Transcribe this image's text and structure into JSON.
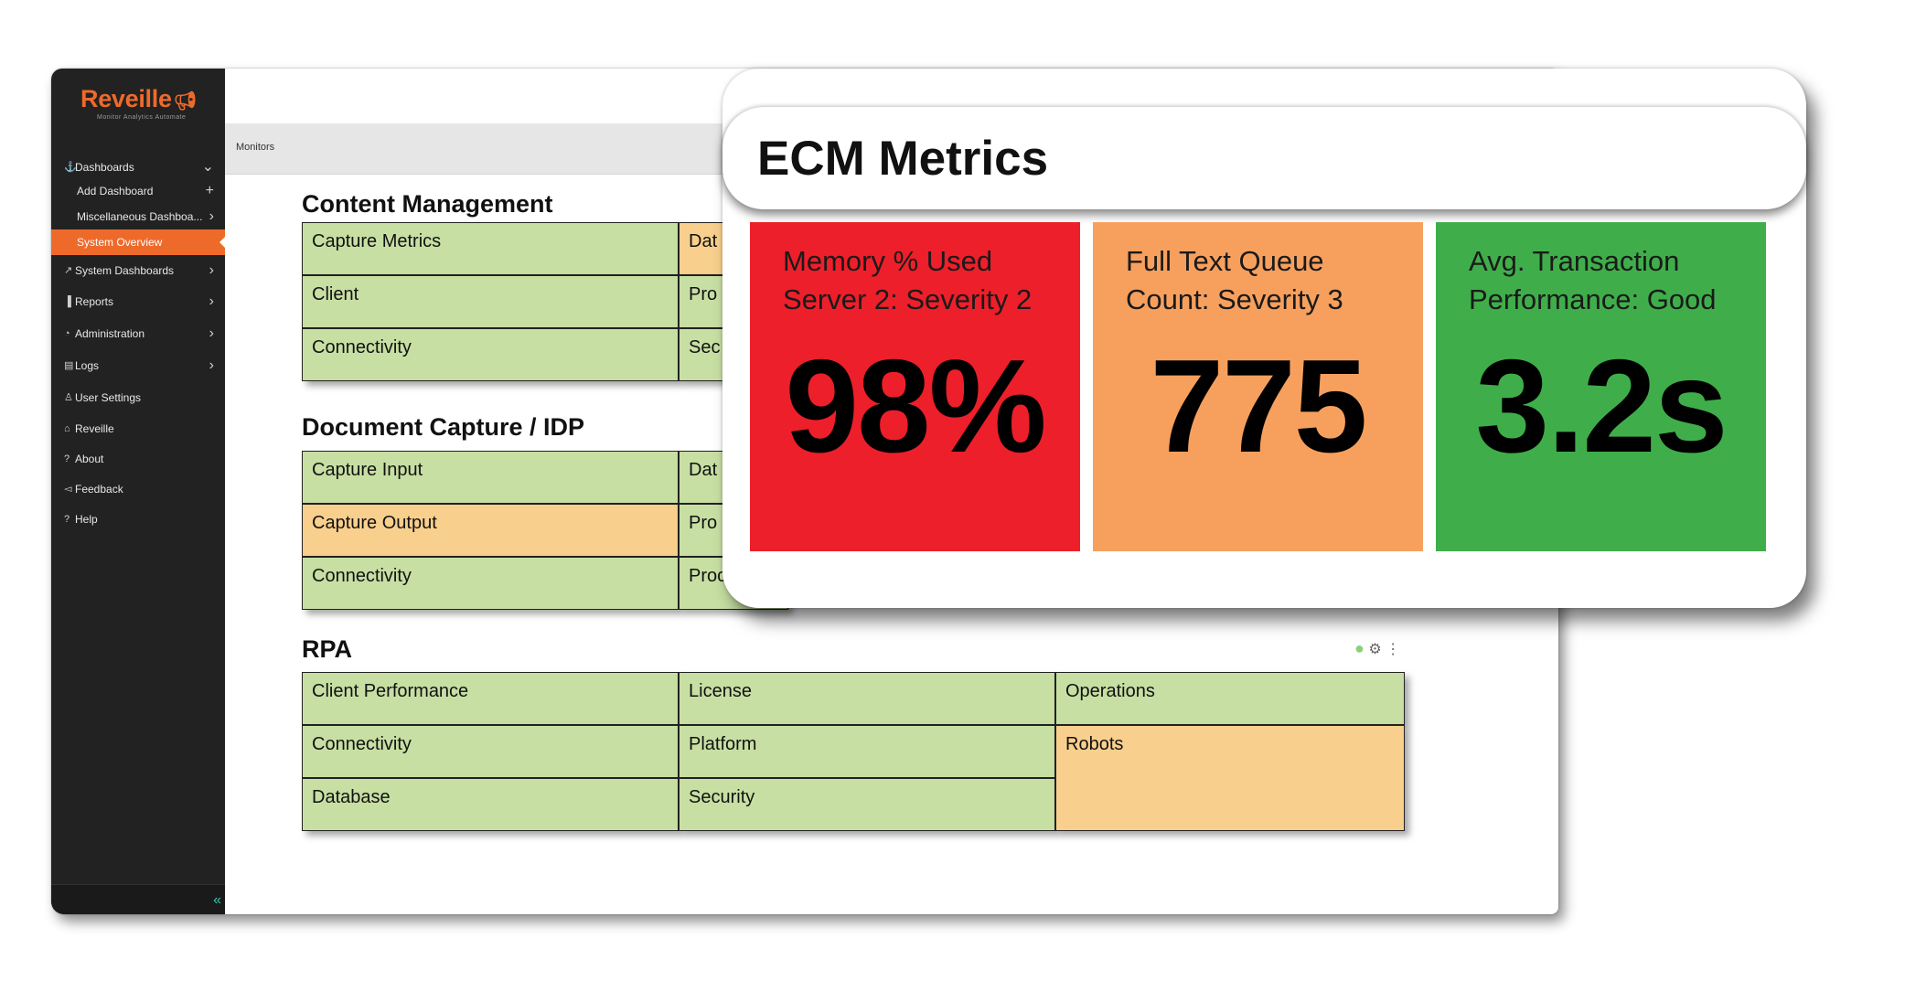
{
  "brand": {
    "name": "Reveille",
    "tagline": "Monitor Analytics Automate"
  },
  "sidebar": {
    "items": [
      {
        "label": "Dashboards",
        "icon": "dashboard-icon"
      },
      {
        "label": "Add Dashboard"
      },
      {
        "label": "Miscellaneous Dashboa..."
      },
      {
        "label": "System Overview"
      },
      {
        "label": "System Dashboards",
        "icon": "system-icon"
      },
      {
        "label": "Reports",
        "icon": "reports-icon"
      },
      {
        "label": "Administration",
        "icon": "admin-icon"
      },
      {
        "label": "Logs",
        "icon": "logs-icon"
      },
      {
        "label": "User Settings",
        "icon": "user-icon"
      },
      {
        "label": "Reveille",
        "icon": "home-icon"
      },
      {
        "label": "About",
        "icon": "about-icon"
      },
      {
        "label": "Feedback",
        "icon": "feedback-icon"
      },
      {
        "label": "Help",
        "icon": "help-icon"
      }
    ]
  },
  "topbar": {
    "breadcrumb": "Monitors"
  },
  "sections": {
    "content_management": {
      "title": "Content Management",
      "col1": [
        "Capture Metrics",
        "Client",
        "Connectivity"
      ],
      "col2": [
        "Dat",
        "Pro",
        "Sec"
      ]
    },
    "document_capture": {
      "title": "Document Capture / IDP",
      "col1": [
        "Capture Input",
        "Capture Output",
        "Connectivity"
      ],
      "col2": [
        "Dat",
        "Pro",
        "Proc"
      ]
    },
    "rpa": {
      "title": "RPA",
      "col1": [
        "Client Performance",
        "Connectivity",
        "Database"
      ],
      "col2": [
        "License",
        "Platform",
        "Security"
      ],
      "col3": [
        "Operations",
        "Robots"
      ]
    }
  },
  "ecm": {
    "title": "ECM Metrics",
    "metrics": [
      {
        "label": "Memory % Used Server 2: Severity 2",
        "value": "98%",
        "color": "#ed1f2a"
      },
      {
        "label": "Full Text Queue Count: Severity 3",
        "value": "775",
        "color": "#f7a05e"
      },
      {
        "label": "Avg. Transaction Performance: Good",
        "value": "3.2s",
        "color": "#3fae4a"
      }
    ]
  },
  "colors": {
    "accent": "#ee6a2a",
    "ok_tile": "#c7dfa3",
    "warn_tile": "#f8cf8c",
    "sidebar_bg": "#222222"
  }
}
